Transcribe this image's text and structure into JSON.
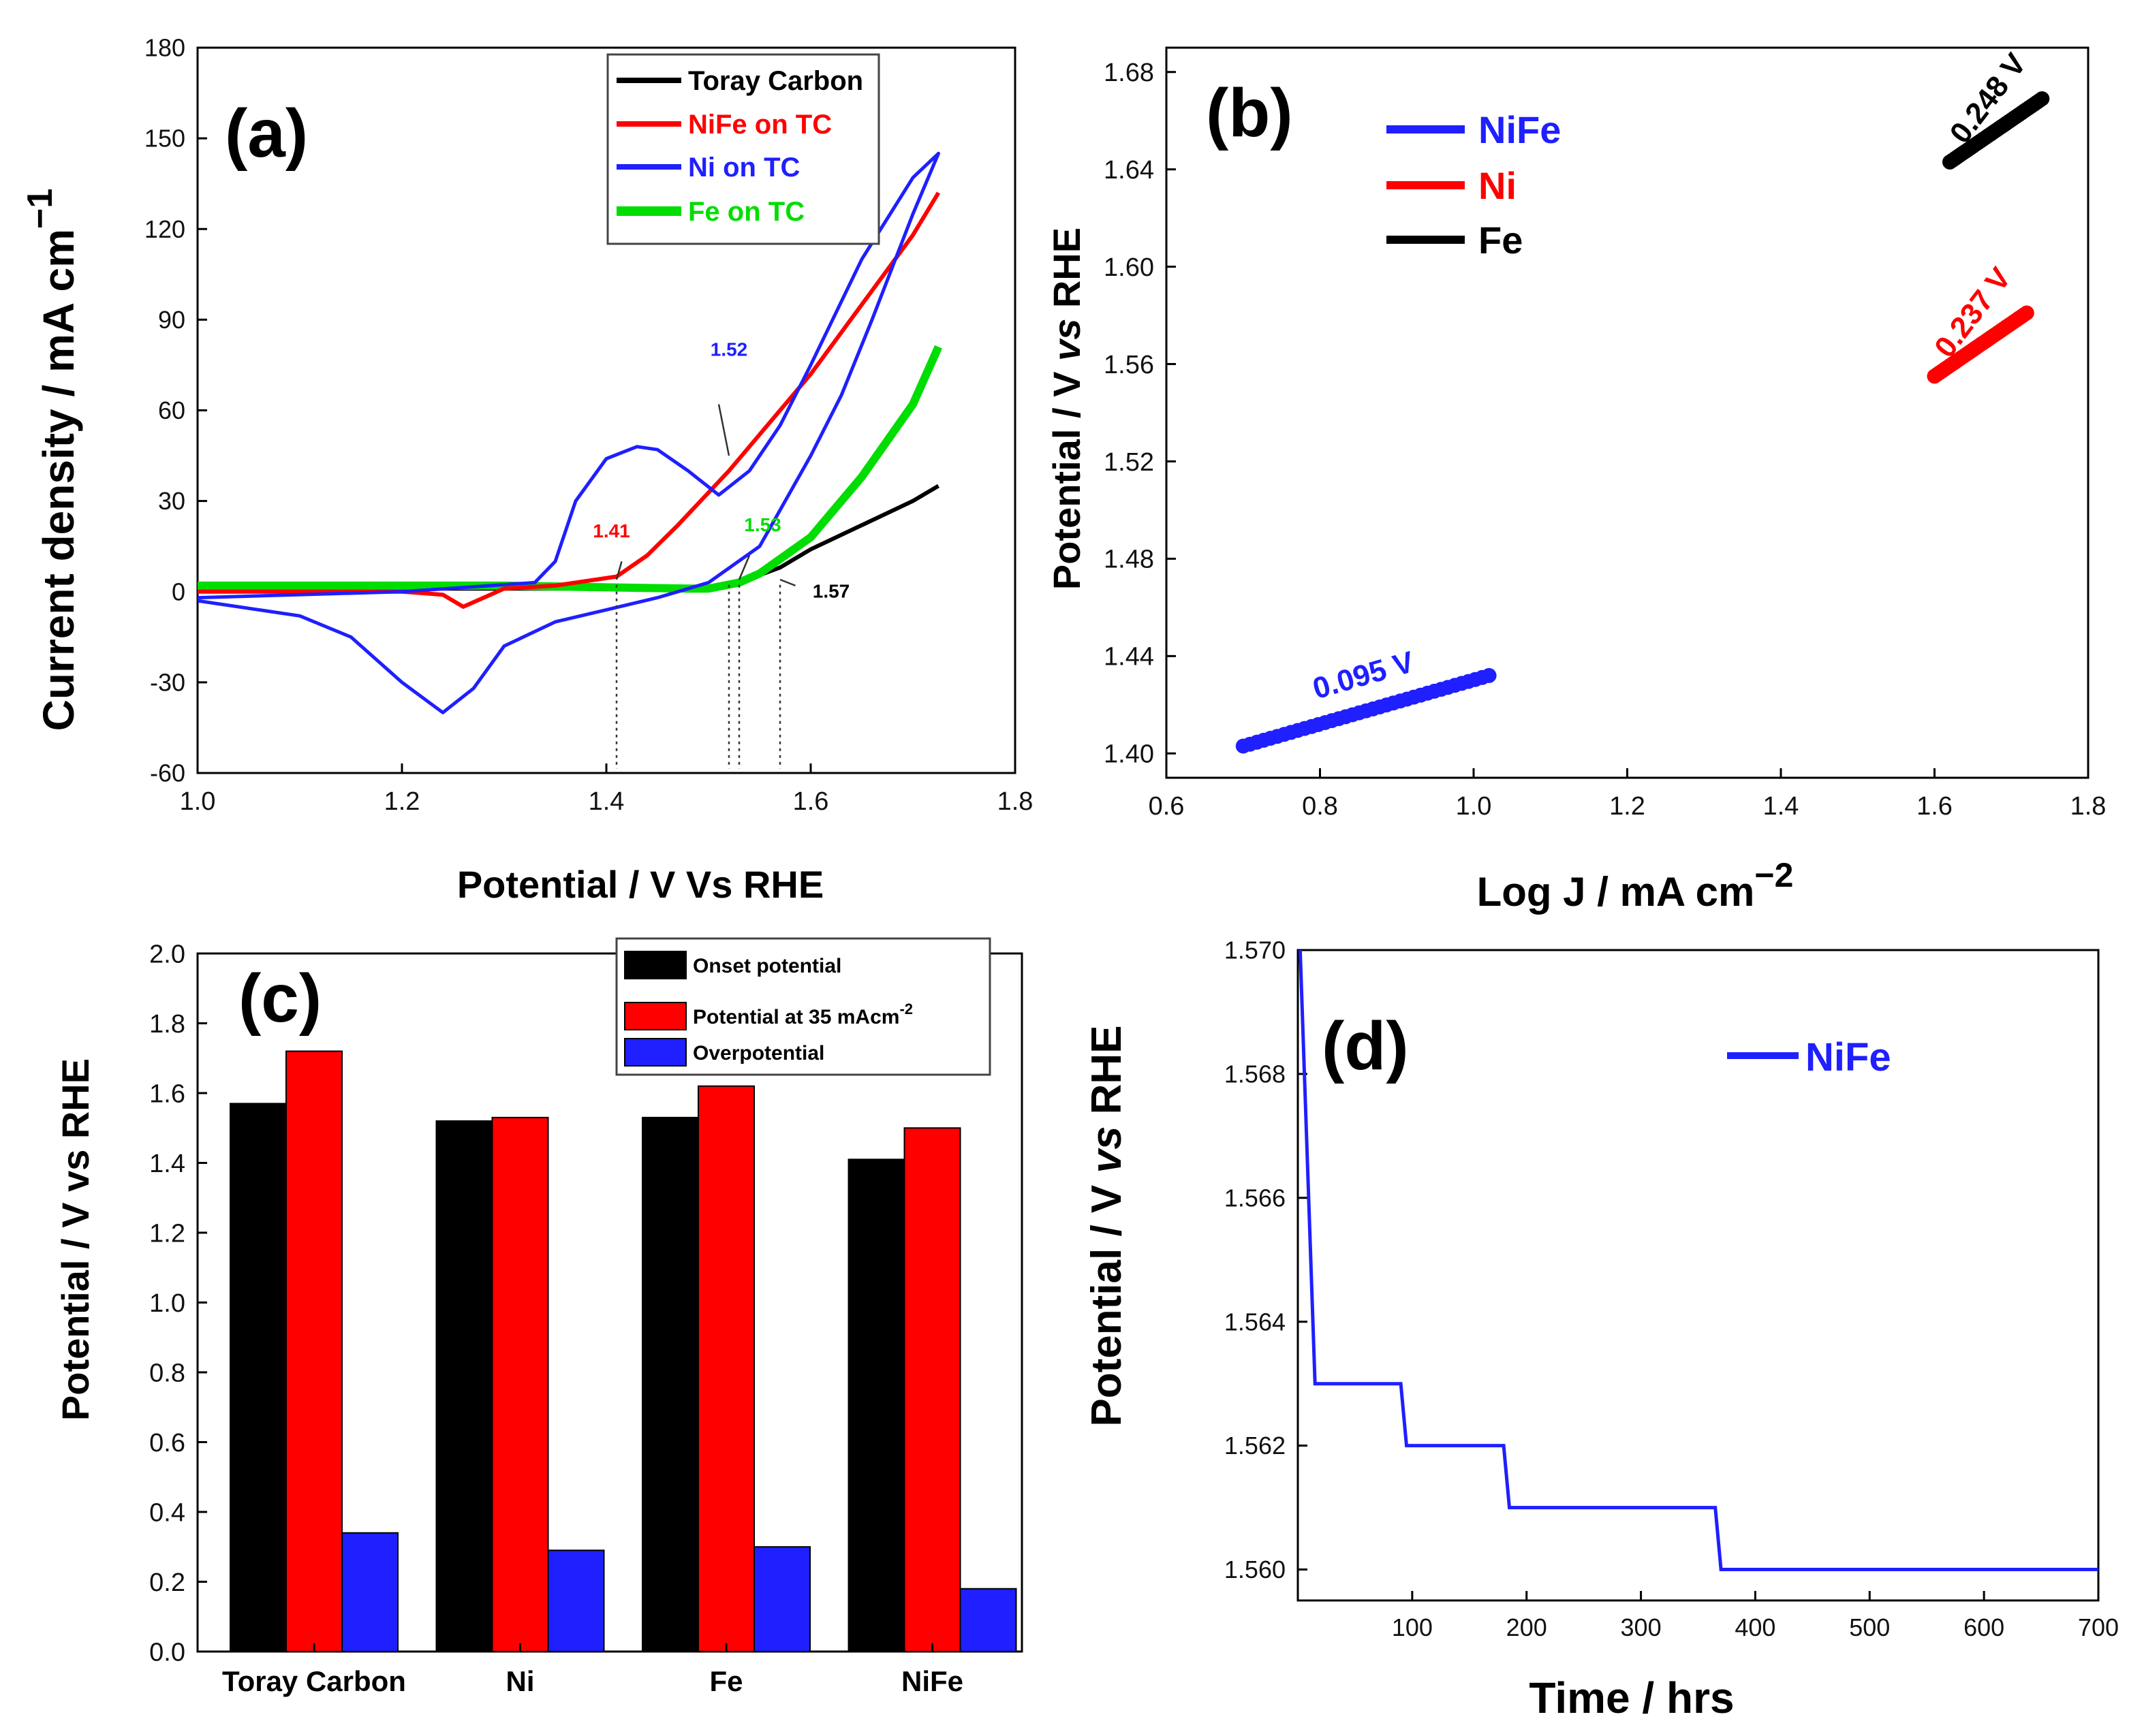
{
  "colors": {
    "black": "#000000",
    "red": "#ff0000",
    "blue": "#1f1fff",
    "green": "#00dd00"
  },
  "chart_data": [
    {
      "id": "a",
      "type": "line",
      "panel_label": "(a)",
      "xlabel": "Potential / V Vs RHE",
      "ylabel_main": "Current density / mA cm",
      "ylabel_sup": "−1",
      "xlim": [
        1.0,
        1.8
      ],
      "ylim": [
        -60,
        180
      ],
      "xticks": [
        {
          "v": 1.0,
          "t": "1.0"
        },
        {
          "v": 1.2,
          "t": "1.2"
        },
        {
          "v": 1.4,
          "t": "1.4"
        },
        {
          "v": 1.6,
          "t": "1.6"
        },
        {
          "v": 1.8,
          "t": "1.8"
        }
      ],
      "yticks": [
        {
          "v": -60,
          "t": "-60"
        },
        {
          "v": -30,
          "t": "-30"
        },
        {
          "v": 0,
          "t": "0"
        },
        {
          "v": 30,
          "t": "30"
        },
        {
          "v": 60,
          "t": "60"
        },
        {
          "v": 90,
          "t": "90"
        },
        {
          "v": 120,
          "t": "120"
        },
        {
          "v": 150,
          "t": "150"
        },
        {
          "v": 180,
          "t": "180"
        }
      ],
      "series": [
        {
          "name": "Toray Carbon",
          "color": "black",
          "points": [
            [
              1.0,
              1
            ],
            [
              1.3,
              1
            ],
            [
              1.45,
              1
            ],
            [
              1.5,
              1
            ],
            [
              1.53,
              3
            ],
            [
              1.57,
              8
            ],
            [
              1.6,
              14
            ],
            [
              1.65,
              22
            ],
            [
              1.7,
              30
            ],
            [
              1.725,
              35
            ]
          ]
        },
        {
          "name": "NiFe on TC",
          "color": "red",
          "points": [
            [
              1.0,
              0
            ],
            [
              1.2,
              0
            ],
            [
              1.24,
              -1
            ],
            [
              1.26,
              -5
            ],
            [
              1.28,
              -2
            ],
            [
              1.3,
              1
            ],
            [
              1.35,
              2
            ],
            [
              1.41,
              5
            ],
            [
              1.44,
              12
            ],
            [
              1.47,
              22
            ],
            [
              1.52,
              40
            ],
            [
              1.55,
              52
            ],
            [
              1.6,
              72
            ],
            [
              1.65,
              95
            ],
            [
              1.7,
              118
            ],
            [
              1.725,
              132
            ]
          ]
        },
        {
          "name": "Ni on TC",
          "color": "blue",
          "points": [
            [
              1.0,
              -3
            ],
            [
              1.1,
              -8
            ],
            [
              1.15,
              -15
            ],
            [
              1.2,
              -30
            ],
            [
              1.24,
              -40
            ],
            [
              1.27,
              -32
            ],
            [
              1.3,
              -18
            ],
            [
              1.35,
              -10
            ],
            [
              1.4,
              -6
            ],
            [
              1.45,
              -2
            ],
            [
              1.5,
              3
            ],
            [
              1.55,
              15
            ],
            [
              1.6,
              45
            ],
            [
              1.63,
              65
            ],
            [
              1.66,
              90
            ],
            [
              1.7,
              125
            ],
            [
              1.725,
              145
            ],
            [
              1.7,
              137
            ],
            [
              1.65,
              110
            ],
            [
              1.6,
              75
            ],
            [
              1.57,
              55
            ],
            [
              1.54,
              40
            ],
            [
              1.51,
              32
            ],
            [
              1.48,
              40
            ],
            [
              1.45,
              47
            ],
            [
              1.43,
              48
            ],
            [
              1.4,
              44
            ],
            [
              1.37,
              30
            ],
            [
              1.35,
              10
            ],
            [
              1.33,
              3
            ],
            [
              1.2,
              0
            ],
            [
              1.0,
              -2
            ]
          ]
        },
        {
          "name": "Fe on TC",
          "color": "green",
          "points": [
            [
              1.0,
              2
            ],
            [
              1.3,
              2
            ],
            [
              1.48,
              1
            ],
            [
              1.5,
              1
            ],
            [
              1.53,
              3
            ],
            [
              1.55,
              6
            ],
            [
              1.6,
              18
            ],
            [
              1.65,
              38
            ],
            [
              1.7,
              62
            ],
            [
              1.725,
              81
            ]
          ]
        }
      ],
      "annotations": [
        {
          "text": "1.52",
          "color": "blue",
          "x": 1.52
        },
        {
          "text": "1.41",
          "color": "red",
          "x": 1.41
        },
        {
          "text": "1.53",
          "color": "green",
          "x": 1.53
        },
        {
          "text": "1.57",
          "color": "black",
          "x": 1.57
        }
      ],
      "legend_position": "top-right"
    },
    {
      "id": "b",
      "type": "scatter",
      "panel_label": "(b)",
      "xlabel_main": "Log J / mA cm",
      "xlabel_sup": "−2",
      "ylabel_pre": "Potential / V ",
      "ylabel_ital": "vs",
      "ylabel_post": " RHE",
      "xlim": [
        0.6,
        1.8
      ],
      "ylim": [
        1.39,
        1.69
      ],
      "xticks": [
        {
          "v": 0.6,
          "t": "0.6"
        },
        {
          "v": 0.8,
          "t": "0.8"
        },
        {
          "v": 1.0,
          "t": "1.0"
        },
        {
          "v": 1.2,
          "t": "1.2"
        },
        {
          "v": 1.4,
          "t": "1.4"
        },
        {
          "v": 1.6,
          "t": "1.6"
        },
        {
          "v": 1.8,
          "t": "1.8"
        }
      ],
      "yticks": [
        {
          "v": 1.4,
          "t": "1.40"
        },
        {
          "v": 1.44,
          "t": "1.44"
        },
        {
          "v": 1.48,
          "t": "1.48"
        },
        {
          "v": 1.52,
          "t": "1.52"
        },
        {
          "v": 1.56,
          "t": "1.56"
        },
        {
          "v": 1.6,
          "t": "1.60"
        },
        {
          "v": 1.64,
          "t": "1.64"
        },
        {
          "v": 1.68,
          "t": "1.68"
        }
      ],
      "series": [
        {
          "name": "NiFe",
          "color": "blue",
          "x_range": [
            0.7,
            1.02
          ],
          "y_range": [
            1.403,
            1.432
          ],
          "label": "0.095 V"
        },
        {
          "name": "Ni",
          "color": "red",
          "x_range": [
            1.6,
            1.72
          ],
          "y_range": [
            1.555,
            1.581
          ],
          "label": "0.237 V"
        },
        {
          "name": "Fe",
          "color": "black",
          "x_range": [
            1.62,
            1.74
          ],
          "y_range": [
            1.643,
            1.669
          ],
          "label": "0.248 V"
        }
      ],
      "legend_position": "top-left"
    },
    {
      "id": "c",
      "type": "bar",
      "panel_label": "(c)",
      "ylabel": "Potential / V vs RHE",
      "ylim": [
        0.0,
        2.0
      ],
      "yticks": [
        {
          "v": 0.0,
          "t": "0.0"
        },
        {
          "v": 0.2,
          "t": "0.2"
        },
        {
          "v": 0.4,
          "t": "0.4"
        },
        {
          "v": 0.6,
          "t": "0.6"
        },
        {
          "v": 0.8,
          "t": "0.8"
        },
        {
          "v": 1.0,
          "t": "1.0"
        },
        {
          "v": 1.2,
          "t": "1.2"
        },
        {
          "v": 1.4,
          "t": "1.4"
        },
        {
          "v": 1.6,
          "t": "1.6"
        },
        {
          "v": 1.8,
          "t": "1.8"
        },
        {
          "v": 2.0,
          "t": "2.0"
        }
      ],
      "categories": [
        "Toray Carbon",
        "Ni",
        "Fe",
        "NiFe"
      ],
      "series": [
        {
          "name": "Onset potential",
          "color": "black",
          "values": [
            1.57,
            1.52,
            1.53,
            1.41
          ]
        },
        {
          "name": "Potential at 35 mAcm",
          "name_sup": "-2",
          "color": "red",
          "values": [
            1.72,
            1.53,
            1.62,
            1.5
          ]
        },
        {
          "name": "Overpotential",
          "color": "blue",
          "values": [
            0.34,
            0.29,
            0.3,
            0.18
          ]
        }
      ],
      "legend_position": "top-right"
    },
    {
      "id": "d",
      "type": "line",
      "panel_label": "(d)",
      "xlabel": "Time / hrs",
      "ylabel_pre": "Potential / V ",
      "ylabel_ital": "vs",
      "ylabel_post": " RHE",
      "xlim": [
        0,
        700
      ],
      "ylim": [
        1.5595,
        1.57
      ],
      "xticks": [
        {
          "v": 100,
          "t": "100"
        },
        {
          "v": 200,
          "t": "200"
        },
        {
          "v": 300,
          "t": "300"
        },
        {
          "v": 400,
          "t": "400"
        },
        {
          "v": 500,
          "t": "500"
        },
        {
          "v": 600,
          "t": "600"
        },
        {
          "v": 700,
          "t": "700"
        }
      ],
      "yticks": [
        {
          "v": 1.56,
          "t": "1.560"
        },
        {
          "v": 1.562,
          "t": "1.562"
        },
        {
          "v": 1.564,
          "t": "1.564"
        },
        {
          "v": 1.566,
          "t": "1.566"
        },
        {
          "v": 1.568,
          "t": "1.568"
        },
        {
          "v": 1.57,
          "t": "1.570"
        }
      ],
      "series": [
        {
          "name": "NiFe",
          "color": "blue",
          "points": [
            [
              2,
              1.57
            ],
            [
              15,
              1.563
            ],
            [
              90,
              1.563
            ],
            [
              95,
              1.562
            ],
            [
              180,
              1.562
            ],
            [
              185,
              1.561
            ],
            [
              365,
              1.561
            ],
            [
              370,
              1.56
            ],
            [
              700,
              1.56
            ]
          ]
        }
      ],
      "legend_position": "top-right"
    }
  ]
}
